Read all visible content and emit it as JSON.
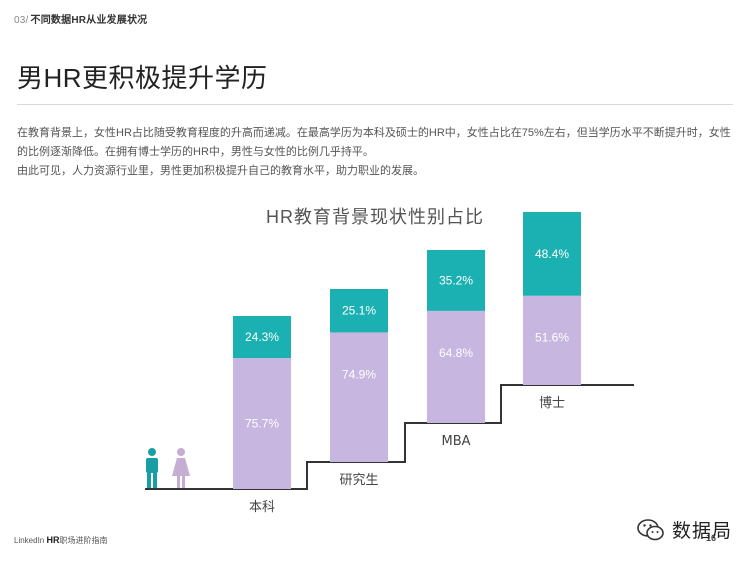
{
  "header": {
    "section_number": "03/",
    "section_title": "不同数据HR从业发展状况"
  },
  "page_title": "男HR更积极提升学历",
  "intro_paragraphs": [
    "在教育背景上，女性HR占比随受教育程度的升高而递减。在最高学历为本科及硕士的HR中，女性占比在75%左右，但当学历水平不断提升时，女性的比例逐渐降低。在拥有博士学历的HR中，男性与女性的比例几乎持平。",
    "由此可见，人力资源行业里，男性更加积极提升自己的教育水平，助力职业的发展。"
  ],
  "chart_data": {
    "type": "bar",
    "stacked": true,
    "title": "HR教育背景现状性别占比",
    "categories": [
      "本科",
      "研究生",
      "MBA",
      "博士"
    ],
    "series": [
      {
        "values": [
          24.3,
          25.1,
          35.2,
          48.4
        ],
        "labels": [
          "24.3%",
          "25.1%",
          "35.2%",
          "48.4%"
        ]
      },
      {
        "values": [
          75.7,
          74.9,
          64.8,
          51.6
        ],
        "labels": [
          "75.7%",
          "74.9%",
          "64.8%",
          "51.6%"
        ]
      }
    ],
    "colors": {
      "male": "#1bb0b2",
      "female": "#c6b6e0",
      "male_icon": "#1a9ea6",
      "female_icon": "#c7acd4",
      "step_line": "#333333"
    },
    "legend": [
      "male-icon",
      "female-icon"
    ]
  },
  "footer": {
    "brand_prefix": "LinkedIn",
    "brand_hr": "HR",
    "brand_suffix": "职场进阶指南",
    "page_number": "16"
  },
  "watermark": {
    "text": "数据局",
    "icon": "wechat-icon"
  }
}
